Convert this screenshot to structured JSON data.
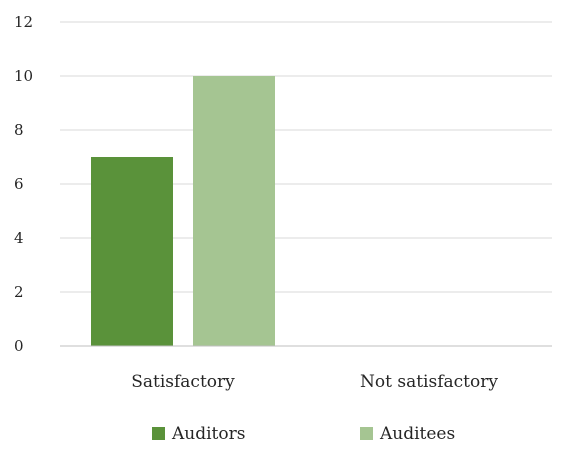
{
  "chart_data": {
    "type": "bar",
    "categories": [
      "Satisfactory",
      "Not satisfactory"
    ],
    "series": [
      {
        "name": "Auditors",
        "values": [
          7,
          0
        ]
      },
      {
        "name": "Auditees",
        "values": [
          10,
          0
        ]
      }
    ],
    "colors": {
      "Auditors": "#5a923a",
      "Auditees": "#a5c592"
    },
    "ylim": [
      0,
      12
    ],
    "yticks": [
      0,
      2,
      4,
      6,
      8,
      10,
      12
    ],
    "grid": true,
    "legend": "bottom"
  }
}
